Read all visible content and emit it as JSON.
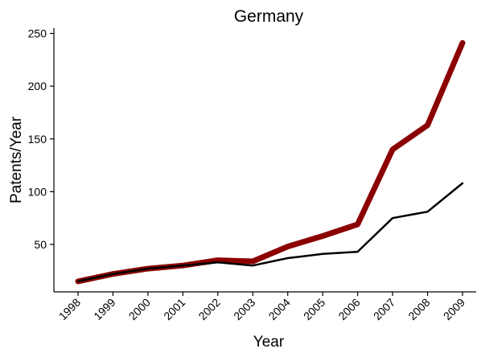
{
  "chart_data": {
    "type": "line",
    "title": "Germany",
    "xlabel": "Year",
    "ylabel": "Patents/Year",
    "x": [
      "1998",
      "1999",
      "2000",
      "2001",
      "2002",
      "2003",
      "2004",
      "2005",
      "2006",
      "2007",
      "2008",
      "2009"
    ],
    "ylim": [
      5,
      255
    ],
    "yticks": [
      50,
      100,
      150,
      200,
      250
    ],
    "grid": false,
    "legend": "none",
    "series": [
      {
        "color": "#8b0000",
        "values": [
          15,
          22,
          27,
          30,
          35,
          34,
          48,
          58,
          69,
          140,
          163,
          241
        ]
      },
      {
        "color": "#000000",
        "values": [
          15,
          22,
          27,
          30,
          33,
          30,
          37,
          41,
          43,
          75,
          81,
          108
        ]
      }
    ]
  }
}
